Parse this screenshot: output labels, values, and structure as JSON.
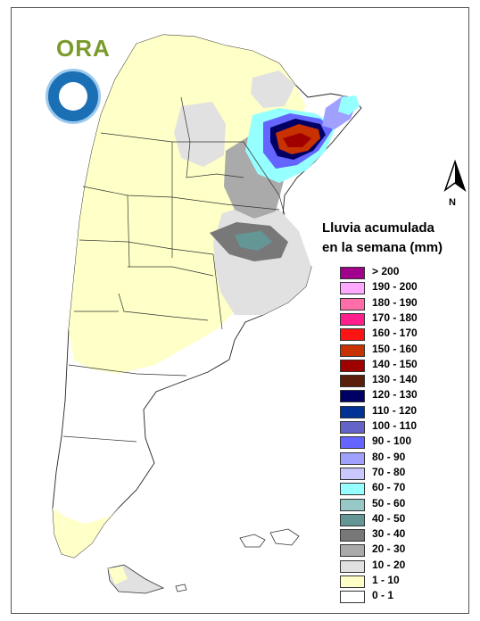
{
  "header": {
    "logo_text": "ORA",
    "seal_icon": "smn-seal-icon"
  },
  "north_arrow": {
    "label": "N"
  },
  "legend": {
    "title_line1": "Lluvia acumulada",
    "title_line2": "en la semana (mm)",
    "items": [
      {
        "label": "> 200",
        "color": "#a0008c"
      },
      {
        "label": "190 - 200",
        "color": "#ffa8ff"
      },
      {
        "label": "180 - 190",
        "color": "#ff6ea8"
      },
      {
        "label": "170 - 180",
        "color": "#ff1e8c"
      },
      {
        "label": "160 - 170",
        "color": "#ff1414"
      },
      {
        "label": "150 - 160",
        "color": "#c83200"
      },
      {
        "label": "140 - 150",
        "color": "#a00000"
      },
      {
        "label": "130 - 140",
        "color": "#5a1e0a"
      },
      {
        "label": "120 - 130",
        "color": "#000064"
      },
      {
        "label": "110 - 120",
        "color": "#003296"
      },
      {
        "label": "100 - 110",
        "color": "#6464c8"
      },
      {
        "label": "90 - 100",
        "color": "#6464ff"
      },
      {
        "label": "80 - 90",
        "color": "#a0a0ff"
      },
      {
        "label": "70 - 80",
        "color": "#c8c8ff"
      },
      {
        "label": "60 - 70",
        "color": "#96ffff"
      },
      {
        "label": "50 - 60",
        "color": "#96c8c8"
      },
      {
        "label": "40 - 50",
        "color": "#649696"
      },
      {
        "label": "30 - 40",
        "color": "#787878"
      },
      {
        "label": "20 - 30",
        "color": "#aaaaaa"
      },
      {
        "label": "10 - 20",
        "color": "#e1e1e1"
      },
      {
        "label": "1 - 10",
        "color": "#ffffc8"
      },
      {
        "label": "0 - 1",
        "color": "#ffffff"
      }
    ]
  }
}
